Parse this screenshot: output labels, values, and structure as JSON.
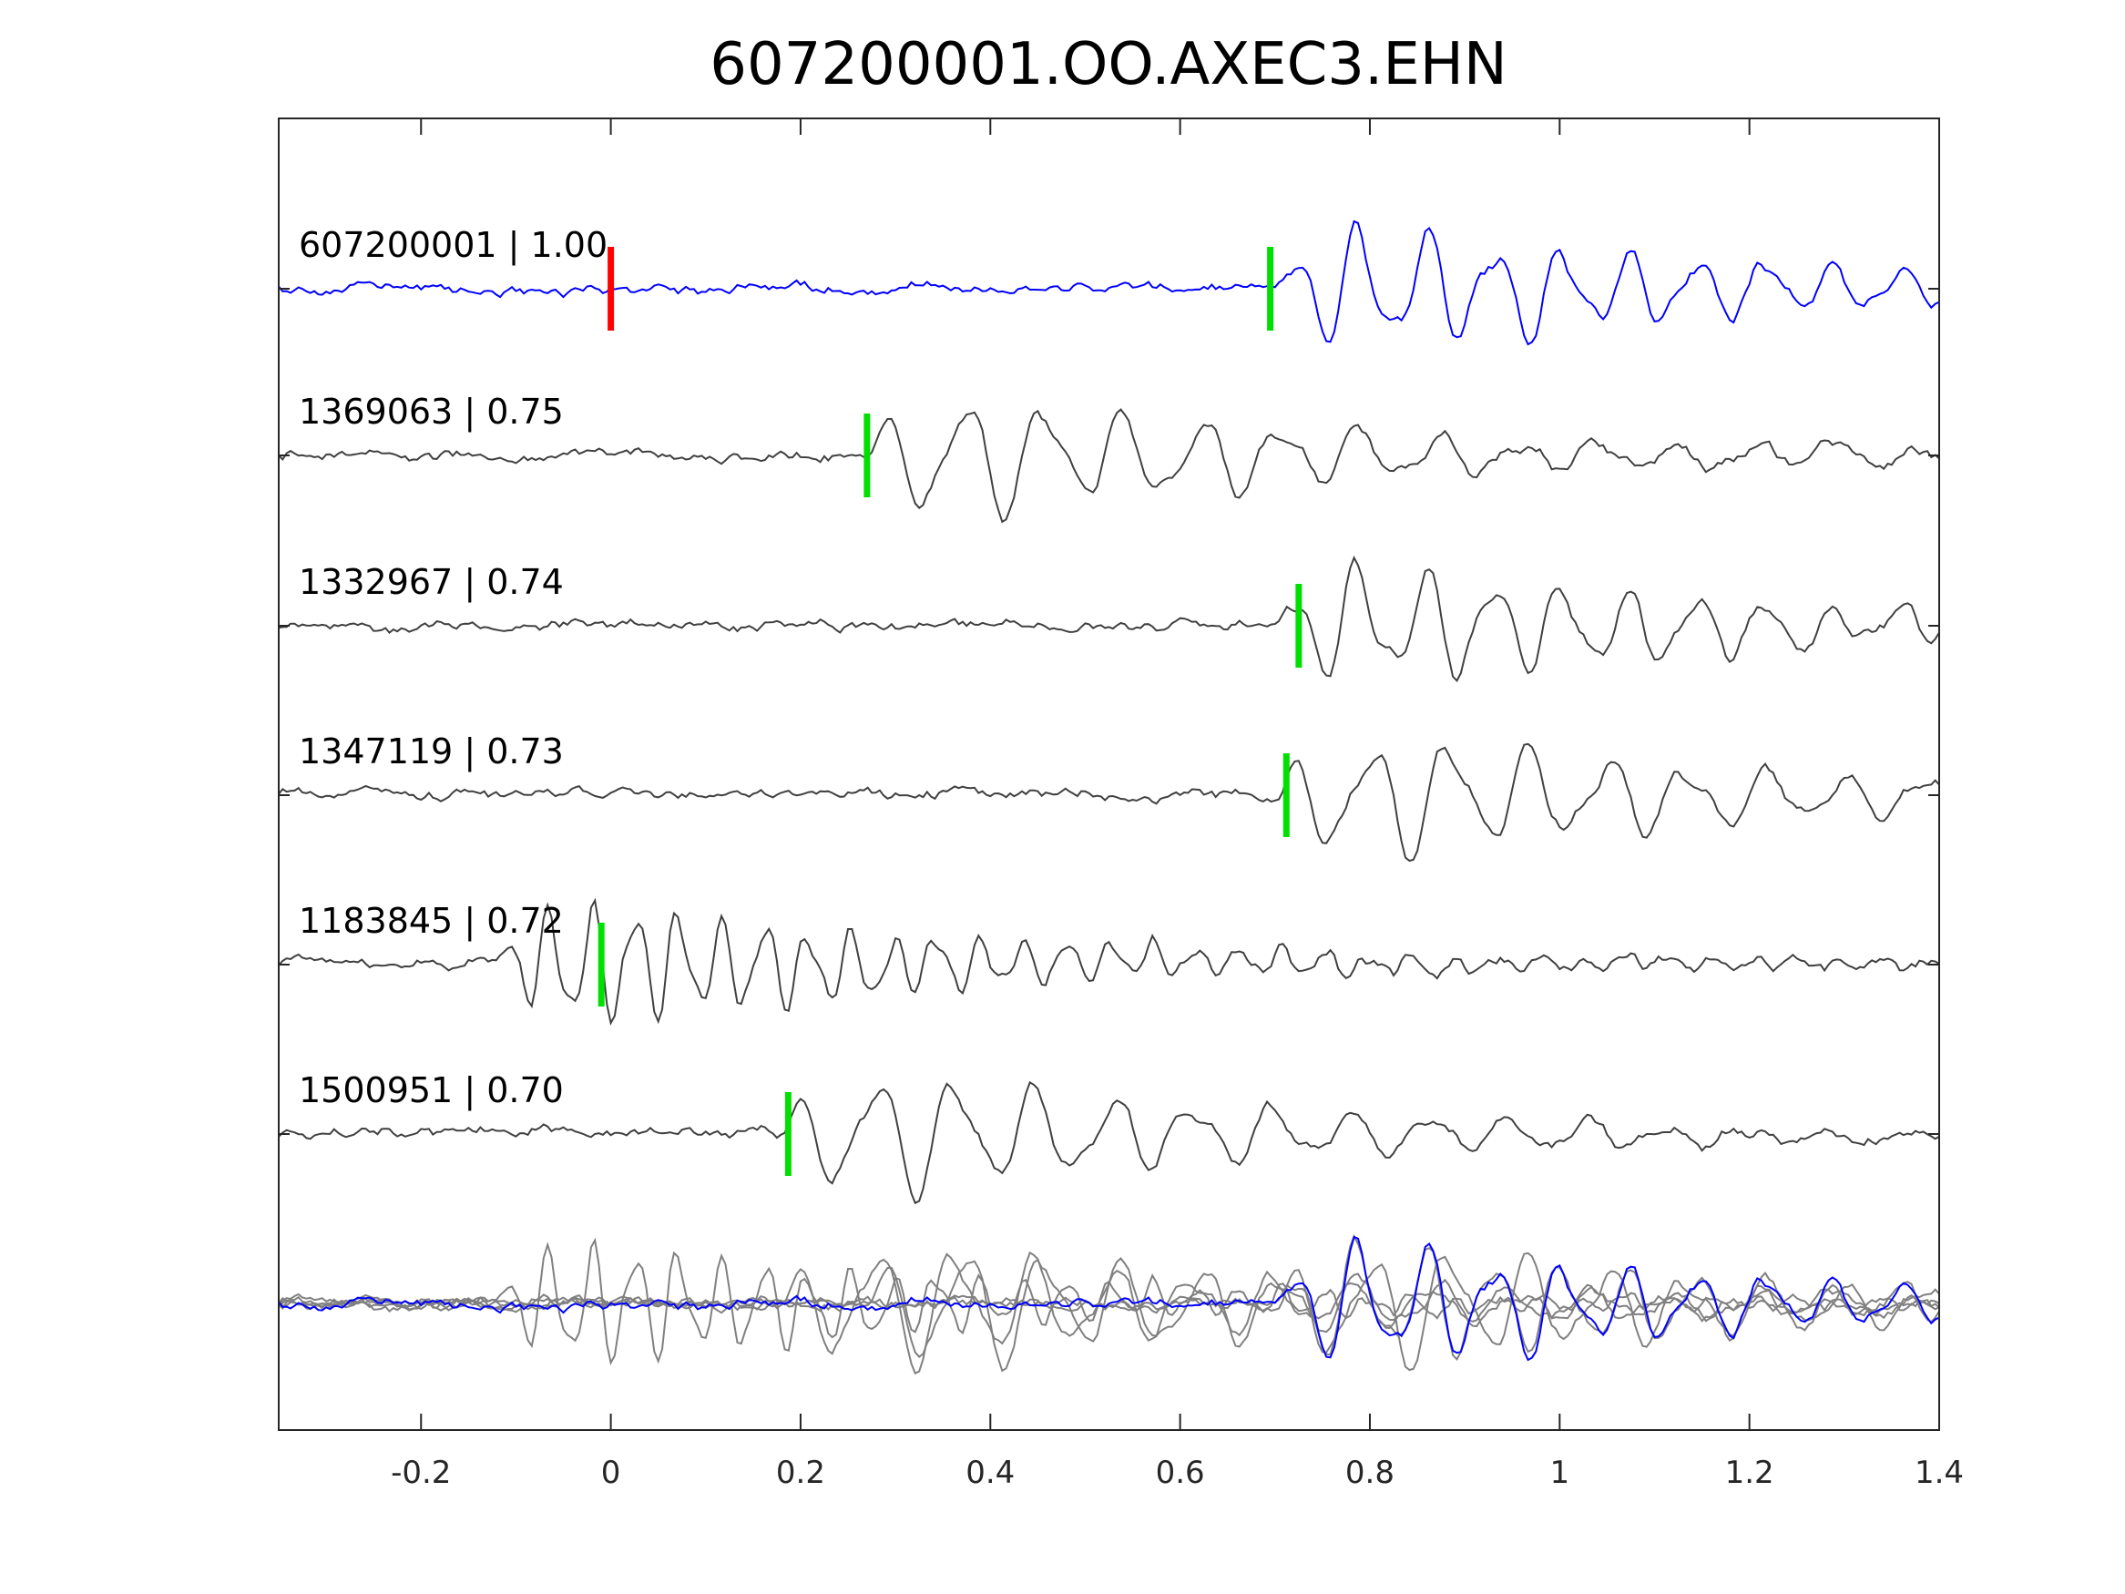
{
  "chart_data": {
    "type": "line",
    "title": "607200001.OO.AXEC3.EHN",
    "xlabel": "",
    "ylabel": "",
    "xlim": [
      -0.35,
      1.4
    ],
    "xticks": [
      -0.2,
      0,
      0.2,
      0.4,
      0.6,
      0.8,
      1,
      1.2,
      1.4
    ],
    "xtick_labels": [
      "-0.2",
      "0",
      "0.2",
      "0.4",
      "0.6",
      "0.8",
      "1",
      "1.2",
      "1.4"
    ],
    "grid": false,
    "traces": [
      {
        "label": "607200001 | 1.00",
        "color": "#0000ff",
        "pick_green": 0.695,
        "pick_red": 0.0,
        "arrival": 0.7,
        "freq": 14
      },
      {
        "label": "1369063 | 0.75",
        "color": "#404040",
        "pick_green": 0.27,
        "arrival": 0.27,
        "freq": 12
      },
      {
        "label": "1332967 | 0.74",
        "color": "#404040",
        "pick_green": 0.725,
        "arrival": 0.7,
        "freq": 14
      },
      {
        "label": "1347119 | 0.73",
        "color": "#404040",
        "pick_green": 0.712,
        "arrival": 0.7,
        "freq": 12
      },
      {
        "label": "1183845 | 0.72",
        "color": "#404040",
        "pick_green": -0.01,
        "arrival": -0.12,
        "freq": 22
      },
      {
        "label": "1500951 | 0.70",
        "color": "#404040",
        "pick_green": 0.187,
        "arrival": 0.18,
        "freq": 12
      }
    ],
    "overlay": {
      "color_others": "#808080",
      "color_master": "#0000ff"
    },
    "pick_colors": {
      "green": "#00e000",
      "red": "#ff0000"
    }
  }
}
